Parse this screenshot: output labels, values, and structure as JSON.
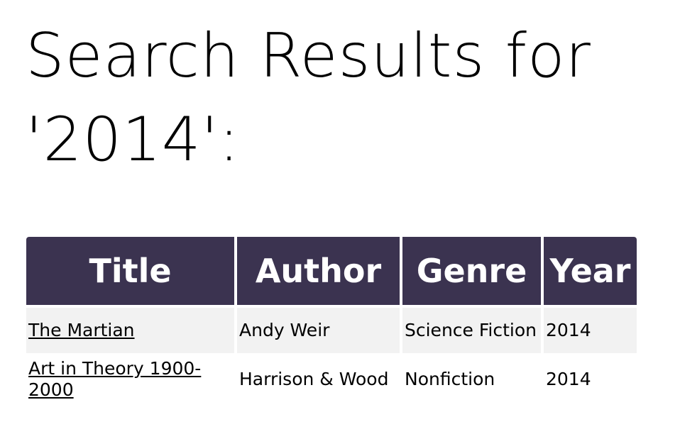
{
  "page": {
    "heading": "Search Results for '2014':"
  },
  "table": {
    "headers": [
      "Title",
      "Author",
      "Genre",
      "Year"
    ],
    "rows": [
      {
        "title": "The Martian",
        "author": "Andy Weir",
        "genre": "Science Fiction",
        "year": "2014"
      },
      {
        "title": "Art in Theory 1900-2000",
        "author": "Harrison & Wood",
        "genre": "Nonfiction",
        "year": "2014"
      }
    ],
    "header_color": "#3b3350",
    "stripe_color": "#f2f2f2"
  }
}
